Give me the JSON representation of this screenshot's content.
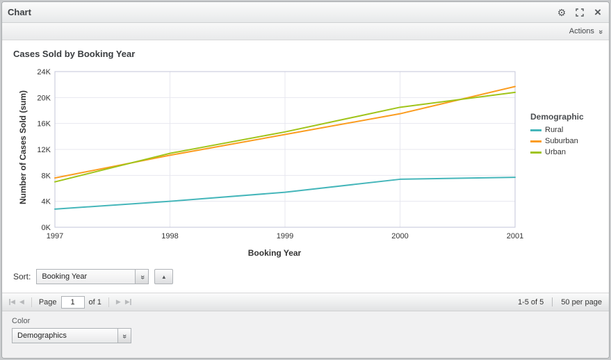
{
  "window": {
    "title": "Chart"
  },
  "toolbar": {
    "actions_label": "Actions"
  },
  "icons": {
    "gear": "⚙",
    "close": "×",
    "double_chevron": "»",
    "ascending": "▲",
    "first": "◀",
    "prev": "◀",
    "next": "▶",
    "last": "▶"
  },
  "chart_data": {
    "type": "line",
    "title": "Cases Sold by Booking Year",
    "xlabel": "Booking Year",
    "ylabel": "Number of Cases Sold (sum)",
    "x": [
      1997,
      1998,
      1999,
      2000,
      2001
    ],
    "xtick_labels": [
      "1997",
      "1998",
      "1999",
      "2000",
      "2001"
    ],
    "ylim": [
      0,
      24000
    ],
    "ytick_labels": [
      "0K",
      "4K",
      "8K",
      "12K",
      "16K",
      "20K",
      "24K"
    ],
    "grid": true,
    "grid_color": "#e7e7ef",
    "axis_color": "#c3c5d8",
    "legend": {
      "title": "Demographic",
      "position": "right"
    },
    "series": [
      {
        "name": "Rural",
        "color": "#45b6ba",
        "values": [
          2800,
          4000,
          5400,
          7400,
          7700
        ]
      },
      {
        "name": "Suburban",
        "color": "#fb9c1f",
        "values": [
          7600,
          11100,
          14300,
          17500,
          21700
        ]
      },
      {
        "name": "Urban",
        "color": "#a0c41a",
        "values": [
          7000,
          11400,
          14700,
          18500,
          20800
        ]
      }
    ]
  },
  "sort": {
    "label": "Sort:",
    "value": "Booking Year"
  },
  "paging": {
    "page_label": "Page",
    "page_value": "1",
    "of_label": "of 1",
    "range_label": "1-5 of 5",
    "per_page_label": "50 per page"
  },
  "color_section": {
    "label": "Color",
    "value": "Demographics"
  }
}
